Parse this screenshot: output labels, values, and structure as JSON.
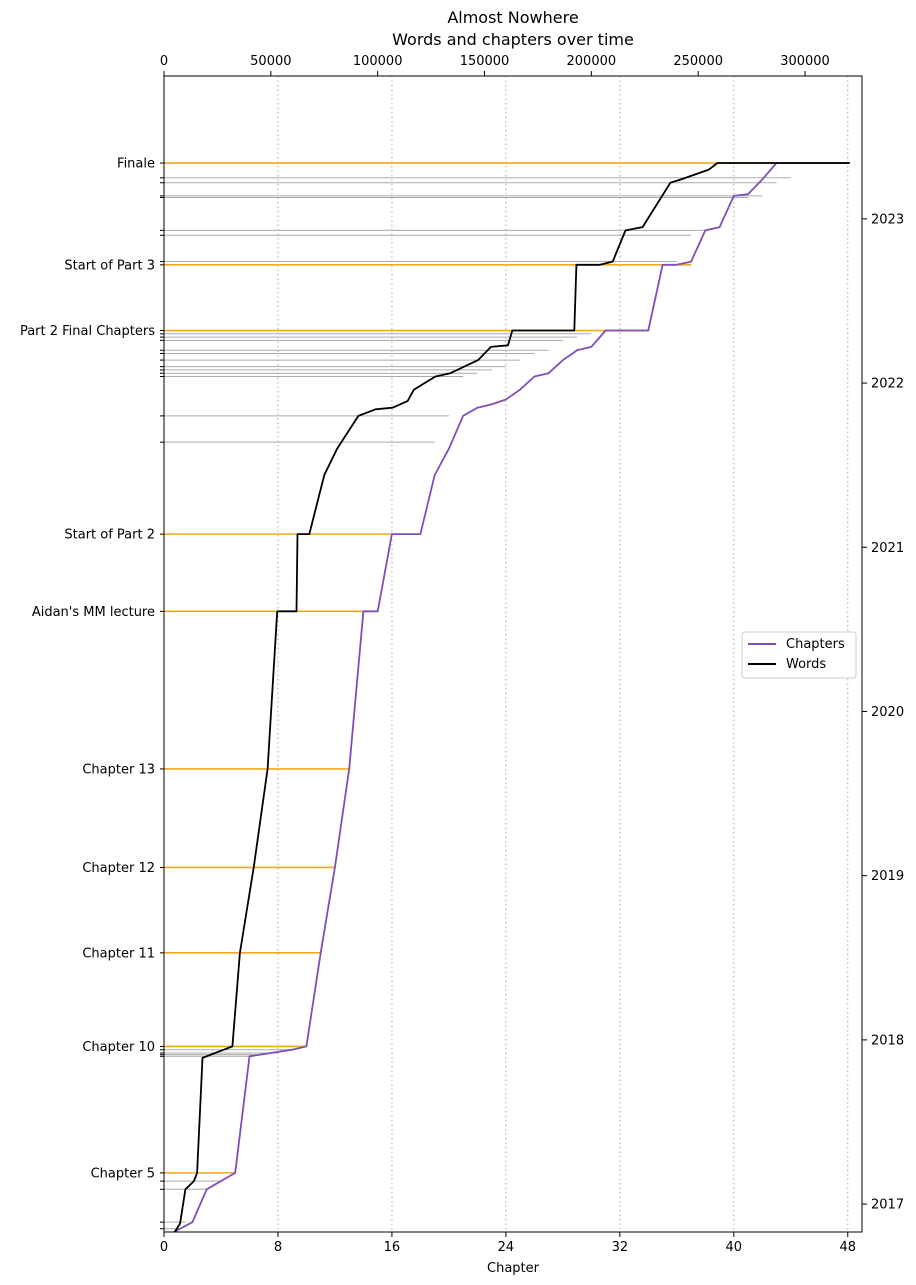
{
  "chart_data": {
    "type": "line",
    "title": "Almost Nowhere",
    "subtitle": "Words and chapters over time",
    "xlabel": "Chapter",
    "x_axis": {
      "range": [
        0,
        49
      ],
      "ticks": [
        0,
        8,
        16,
        24,
        32,
        40,
        48
      ],
      "tick_labels": [
        "0",
        "8",
        "16",
        "24",
        "32",
        "40",
        "48"
      ],
      "grid": "dotted"
    },
    "x2_axis": {
      "label": "",
      "range": [
        0,
        326667
      ],
      "ticks": [
        0,
        50000,
        100000,
        150000,
        200000,
        250000,
        300000
      ],
      "tick_labels": [
        "0",
        "50000",
        "100000",
        "150000",
        "200000",
        "250000",
        "300000"
      ]
    },
    "y_axis_right": {
      "range": [
        2016.83,
        2023.87
      ],
      "ticks": [
        2017,
        2018,
        2019,
        2020,
        2021,
        2022,
        2023
      ],
      "tick_labels": [
        "2017",
        "2018",
        "2019",
        "2020",
        "2021",
        "2022",
        "2023"
      ]
    },
    "legend": {
      "placement": "center-right",
      "entries": [
        {
          "label": "Chapters",
          "color": "#7f4fb5"
        },
        {
          "label": "Words",
          "color": "#000000"
        }
      ]
    },
    "colors": {
      "chapters": "#7f4fb5",
      "words": "#000000",
      "milestone": "#f0a81c",
      "event": "#aaaaaa",
      "grid": "#aaaaaa"
    },
    "milestones": [
      {
        "label": "Chapter 5",
        "date": 2017.19,
        "chapter": 5.0
      },
      {
        "label": "Chapter 10",
        "date": 2017.96,
        "chapter": 10.0
      },
      {
        "label": "Chapter 11",
        "date": 2018.53,
        "chapter": 11.0
      },
      {
        "label": "Chapter 12",
        "date": 2019.05,
        "chapter": 12.0
      },
      {
        "label": "Chapter 13",
        "date": 2019.65,
        "chapter": 13.0
      },
      {
        "label": "Aidan's MM lecture",
        "date": 2020.61,
        "chapter": 15.0
      },
      {
        "label": "Start of Part 2",
        "date": 2021.08,
        "chapter": 16.0
      },
      {
        "label": "Part 2 Final Chapters",
        "date": 2022.32,
        "chapter": 34.0
      },
      {
        "label": "Start of Part 3",
        "date": 2022.72,
        "chapter": 37.0
      },
      {
        "label": "Finale",
        "date": 2023.34,
        "chapter": 48.0
      }
    ],
    "events": [
      {
        "date": 2016.89,
        "chapter": 1.5
      },
      {
        "date": 2016.85,
        "chapter": 1.0
      },
      {
        "date": 2017.14,
        "chapter": 4.0
      },
      {
        "date": 2017.09,
        "chapter": 3.0
      },
      {
        "date": 2017.94,
        "chapter": 9.0
      },
      {
        "date": 2017.92,
        "chapter": 8.0
      },
      {
        "date": 2017.91,
        "chapter": 7.0
      },
      {
        "date": 2017.9,
        "chapter": 6.0
      },
      {
        "date": 2021.64,
        "chapter": 19.0
      },
      {
        "date": 2021.8,
        "chapter": 20.0
      },
      {
        "date": 2022.04,
        "chapter": 21.0
      },
      {
        "date": 2022.06,
        "chapter": 22.0
      },
      {
        "date": 2022.08,
        "chapter": 23.0
      },
      {
        "date": 2022.1,
        "chapter": 24.0
      },
      {
        "date": 2022.14,
        "chapter": 25.0
      },
      {
        "date": 2022.18,
        "chapter": 26.0
      },
      {
        "date": 2022.2,
        "chapter": 27.0
      },
      {
        "date": 2022.26,
        "chapter": 28.0
      },
      {
        "date": 2022.28,
        "chapter": 29.0
      },
      {
        "date": 2022.3,
        "chapter": 30.0
      },
      {
        "date": 2022.74,
        "chapter": 36.0
      },
      {
        "date": 2022.9,
        "chapter": 37.0
      },
      {
        "date": 2022.93,
        "chapter": 38.0
      },
      {
        "date": 2023.13,
        "chapter": 41.0
      },
      {
        "date": 2023.14,
        "chapter": 42.0
      },
      {
        "date": 2023.22,
        "chapter": 43.0
      },
      {
        "date": 2023.25,
        "chapter": 44.0
      }
    ],
    "series": [
      {
        "name": "Chapters",
        "points": [
          {
            "chapter": 0.7,
            "date": 2016.83
          },
          {
            "chapter": 2.0,
            "date": 2016.89
          },
          {
            "chapter": 3.0,
            "date": 2017.09
          },
          {
            "chapter": 5.0,
            "date": 2017.19
          },
          {
            "chapter": 6.0,
            "date": 2017.9
          },
          {
            "chapter": 7.5,
            "date": 2017.92
          },
          {
            "chapter": 9.0,
            "date": 2017.94
          },
          {
            "chapter": 10.0,
            "date": 2017.96
          },
          {
            "chapter": 11.0,
            "date": 2018.53
          },
          {
            "chapter": 12.0,
            "date": 2019.05
          },
          {
            "chapter": 13.0,
            "date": 2019.65
          },
          {
            "chapter": 14.0,
            "date": 2020.61
          },
          {
            "chapter": 15.0,
            "date": 2020.61
          },
          {
            "chapter": 16.0,
            "date": 2021.08
          },
          {
            "chapter": 18.0,
            "date": 2021.08
          },
          {
            "chapter": 19.0,
            "date": 2021.44
          },
          {
            "chapter": 20.0,
            "date": 2021.6
          },
          {
            "chapter": 21.0,
            "date": 2021.8
          },
          {
            "chapter": 22.0,
            "date": 2021.85
          },
          {
            "chapter": 23.0,
            "date": 2021.87
          },
          {
            "chapter": 24.0,
            "date": 2021.9
          },
          {
            "chapter": 25.0,
            "date": 2021.96
          },
          {
            "chapter": 26.0,
            "date": 2022.04
          },
          {
            "chapter": 27.0,
            "date": 2022.06
          },
          {
            "chapter": 28.0,
            "date": 2022.14
          },
          {
            "chapter": 29.0,
            "date": 2022.2
          },
          {
            "chapter": 30.0,
            "date": 2022.22
          },
          {
            "chapter": 31.0,
            "date": 2022.32
          },
          {
            "chapter": 34.0,
            "date": 2022.32
          },
          {
            "chapter": 35.0,
            "date": 2022.72
          },
          {
            "chapter": 36.0,
            "date": 2022.72
          },
          {
            "chapter": 37.0,
            "date": 2022.74
          },
          {
            "chapter": 38.0,
            "date": 2022.93
          },
          {
            "chapter": 39.0,
            "date": 2022.95
          },
          {
            "chapter": 40.0,
            "date": 2023.14
          },
          {
            "chapter": 41.0,
            "date": 2023.15
          },
          {
            "chapter": 42.0,
            "date": 2023.24
          },
          {
            "chapter": 43.0,
            "date": 2023.34
          },
          {
            "chapter": 48.0,
            "date": 2023.34
          }
        ]
      },
      {
        "name": "Words",
        "points": [
          {
            "words": 5000,
            "date": 2016.83
          },
          {
            "words": 7500,
            "date": 2016.88
          },
          {
            "words": 10000,
            "date": 2017.09
          },
          {
            "words": 14000,
            "date": 2017.14
          },
          {
            "words": 15500,
            "date": 2017.19
          },
          {
            "words": 18000,
            "date": 2017.89
          },
          {
            "words": 28000,
            "date": 2017.94
          },
          {
            "words": 32000,
            "date": 2017.96
          },
          {
            "words": 35500,
            "date": 2018.53
          },
          {
            "words": 42000,
            "date": 2019.05
          },
          {
            "words": 48500,
            "date": 2019.65
          },
          {
            "words": 53000,
            "date": 2020.61
          },
          {
            "words": 62000,
            "date": 2020.61
          },
          {
            "words": 62500,
            "date": 2021.08
          },
          {
            "words": 68000,
            "date": 2021.08
          },
          {
            "words": 75000,
            "date": 2021.44
          },
          {
            "words": 81000,
            "date": 2021.6
          },
          {
            "words": 91000,
            "date": 2021.8
          },
          {
            "words": 99000,
            "date": 2021.84
          },
          {
            "words": 107000,
            "date": 2021.85
          },
          {
            "words": 114000,
            "date": 2021.89
          },
          {
            "words": 117000,
            "date": 2021.96
          },
          {
            "words": 127000,
            "date": 2022.04
          },
          {
            "words": 134000,
            "date": 2022.06
          },
          {
            "words": 147000,
            "date": 2022.14
          },
          {
            "words": 153000,
            "date": 2022.22
          },
          {
            "words": 161000,
            "date": 2022.23
          },
          {
            "words": 163000,
            "date": 2022.32
          },
          {
            "words": 192000,
            "date": 2022.32
          },
          {
            "words": 193000,
            "date": 2022.72
          },
          {
            "words": 204000,
            "date": 2022.72
          },
          {
            "words": 210000,
            "date": 2022.74
          },
          {
            "words": 216000,
            "date": 2022.93
          },
          {
            "words": 224000,
            "date": 2022.95
          },
          {
            "words": 237000,
            "date": 2023.22
          },
          {
            "words": 242000,
            "date": 2023.24
          },
          {
            "words": 255000,
            "date": 2023.3
          },
          {
            "words": 259000,
            "date": 2023.34
          },
          {
            "words": 321000,
            "date": 2023.34
          }
        ]
      }
    ]
  }
}
